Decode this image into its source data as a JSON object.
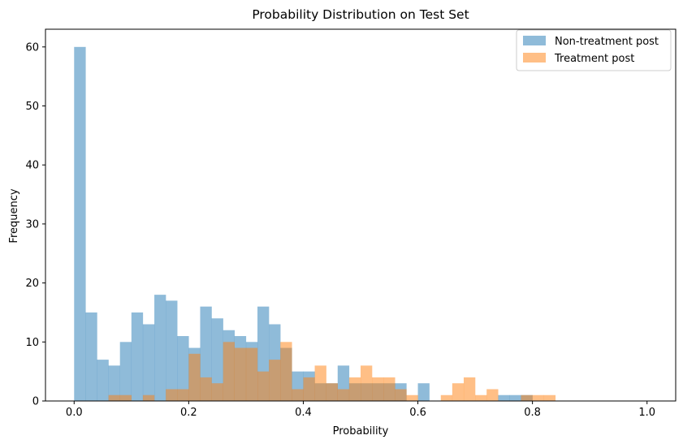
{
  "chart_data": {
    "type": "bar",
    "title": "Probability Distribution on Test Set",
    "xlabel": "Probability",
    "ylabel": "Frequency",
    "xlim": [
      -0.05,
      1.05
    ],
    "ylim": [
      0,
      63
    ],
    "xticks": [
      0.0,
      0.2,
      0.4,
      0.6,
      0.8,
      1.0
    ],
    "xtick_labels": [
      "0.0",
      "0.2",
      "0.4",
      "0.6",
      "0.8",
      "1.0"
    ],
    "yticks": [
      0,
      10,
      20,
      30,
      40,
      50,
      60
    ],
    "ytick_labels": [
      "0",
      "10",
      "20",
      "30",
      "40",
      "50",
      "60"
    ],
    "grid": false,
    "legend_position": "top-right",
    "bin_edges_range": [
      0,
      1
    ],
    "bin_count": 50,
    "series": [
      {
        "name": "Non-treatment post",
        "color": "#1f77b4",
        "alpha": 0.5,
        "values": [
          60,
          15,
          7,
          6,
          10,
          15,
          13,
          18,
          17,
          11,
          9,
          16,
          14,
          12,
          11,
          10,
          16,
          13,
          9,
          5,
          5,
          3,
          3,
          6,
          3,
          3,
          3,
          3,
          3,
          0,
          3,
          0,
          0,
          0,
          0,
          0,
          0,
          1,
          1,
          1,
          0,
          0,
          0,
          0,
          0,
          0,
          0,
          0,
          0,
          0
        ]
      },
      {
        "name": "Treatment post",
        "color": "#ff7f0e",
        "alpha": 0.5,
        "values": [
          0,
          0,
          0,
          1,
          1,
          0,
          1,
          0,
          2,
          2,
          8,
          4,
          3,
          10,
          9,
          9,
          5,
          7,
          10,
          2,
          4,
          6,
          3,
          2,
          4,
          6,
          4,
          4,
          2,
          1,
          0,
          0,
          1,
          3,
          4,
          1,
          2,
          0,
          0,
          1,
          1,
          1,
          0,
          0,
          0,
          0,
          0,
          0,
          0,
          0
        ]
      }
    ]
  }
}
